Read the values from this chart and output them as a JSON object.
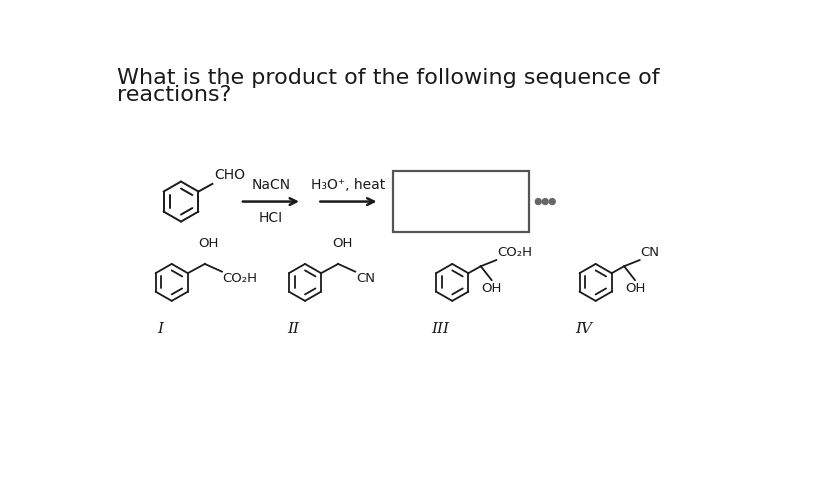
{
  "background_color": "#ffffff",
  "title_line1": "What is the product of the following sequence of",
  "title_line2": "reactions?",
  "title_fontsize": 16,
  "reagent1_label1": "NaCN",
  "reagent1_label2": "HCI",
  "reagent2_label": "H₃O⁺, heat",
  "roman_labels": [
    "I",
    "II",
    "III",
    "IV"
  ],
  "dots_color": "#666666",
  "line_color": "#1a1a1a",
  "text_color": "#1a1a1a"
}
